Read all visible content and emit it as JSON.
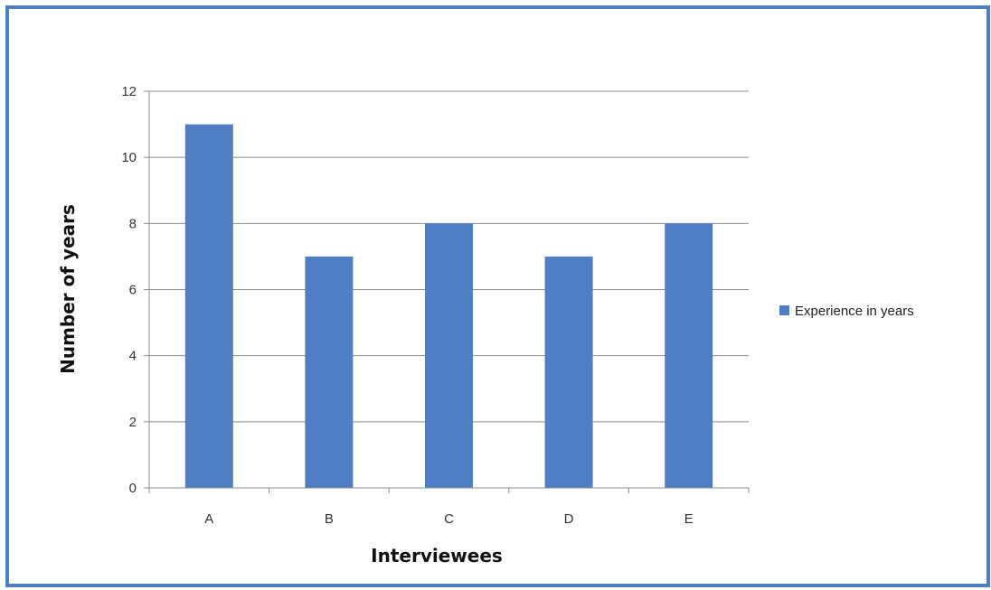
{
  "chart_data": {
    "type": "bar",
    "title": "",
    "xlabel": "Interviewees",
    "ylabel": "Number of years",
    "categories": [
      "A",
      "B",
      "C",
      "D",
      "E"
    ],
    "series": [
      {
        "name": "Experience in years",
        "values": [
          11,
          7,
          8,
          7,
          8
        ],
        "color": "#4f7ec4"
      }
    ],
    "ylim": [
      0,
      12
    ],
    "yticks": [
      0,
      2,
      4,
      6,
      8,
      10,
      12
    ],
    "grid": true,
    "legend_position": "right"
  }
}
